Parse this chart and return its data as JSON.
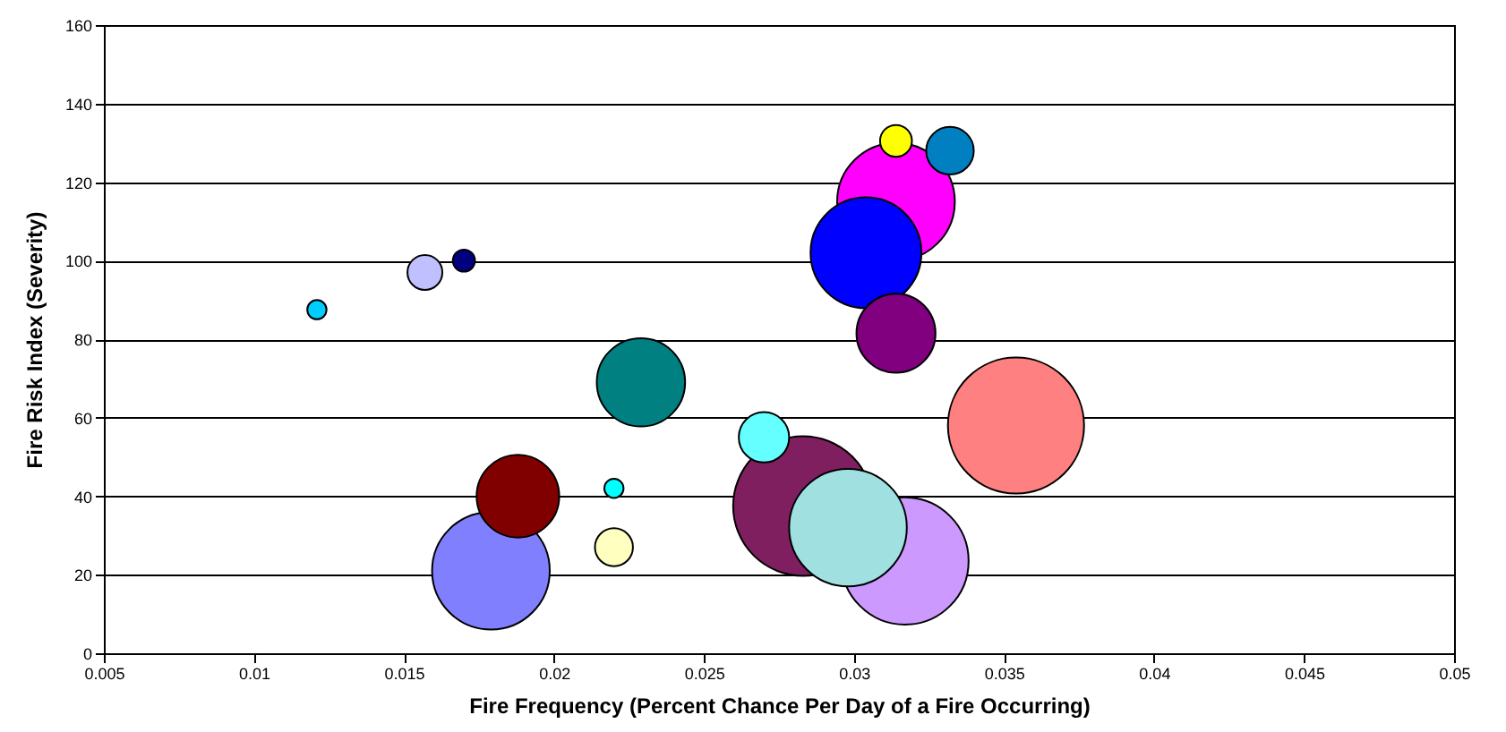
{
  "chart_data": {
    "type": "bubble",
    "xlabel": "Fire Frequency (Percent Chance Per Day of a Fire Occurring)",
    "ylabel": "Fire Risk Index (Severity)",
    "x": [
      0.0121,
      0.0157,
      0.017,
      0.0179,
      0.0188,
      0.022,
      0.022,
      0.0229,
      0.0317,
      0.0283,
      0.027,
      0.0298,
      0.0314,
      0.0304,
      0.0314,
      0.0314,
      0.0332,
      0.0354
    ],
    "values": [
      87.5,
      97,
      100,
      21,
      40,
      42,
      27,
      69,
      23.5,
      37.5,
      55,
      32,
      115,
      102,
      81.5,
      130.5,
      128,
      58
    ],
    "sizes": [
      0.019,
      0.0625,
      0.025,
      0.71,
      0.35,
      0.019,
      0.074,
      0.4,
      0.83,
      1,
      0.13,
      0.71,
      0.71,
      0.63,
      0.32,
      0.052,
      0.116,
      0.95
    ],
    "colors": [
      "#00ccff",
      "#c0c0ff",
      "#000080",
      "#8080ff",
      "#800000",
      "#00ffff",
      "#ffffc0",
      "#008080",
      "#cc99ff",
      "#7f1f5f",
      "#66ffff",
      "#a0e0e0",
      "#ff00ff",
      "#0000ff",
      "#800080",
      "#ffff00",
      "#0080c0",
      "#ff8080"
    ],
    "xlim": [
      0.005,
      0.05
    ],
    "xticks": [
      0.005,
      0.01,
      0.015,
      0.02,
      0.025,
      0.03,
      0.035,
      0.04,
      0.045,
      0.05
    ],
    "ylim": [
      0,
      160
    ],
    "yticks": [
      0,
      20,
      40,
      60,
      80,
      100,
      120,
      140,
      160
    ],
    "grid": "y"
  }
}
